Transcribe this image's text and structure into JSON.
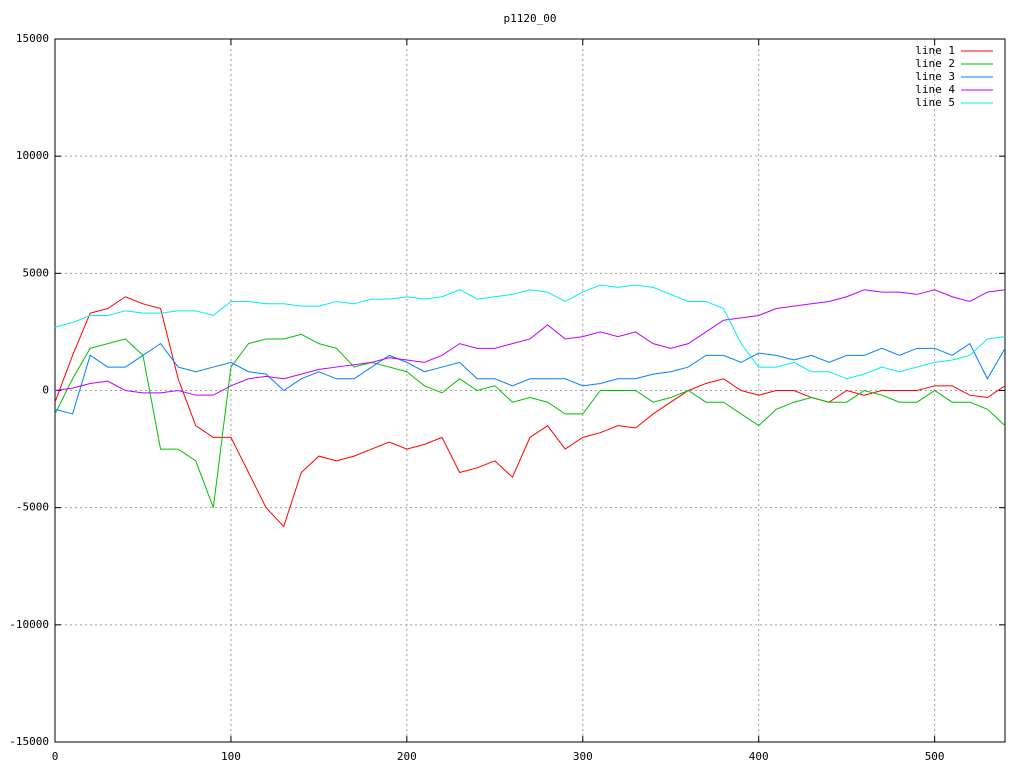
{
  "chart_data": {
    "type": "line",
    "title": "p1120_00",
    "x": [
      0,
      10,
      20,
      30,
      40,
      50,
      60,
      70,
      80,
      90,
      100,
      110,
      120,
      130,
      140,
      150,
      160,
      170,
      180,
      190,
      200,
      210,
      220,
      230,
      240,
      250,
      260,
      270,
      280,
      290,
      300,
      310,
      320,
      330,
      340,
      350,
      360,
      370,
      380,
      390,
      400,
      410,
      420,
      430,
      440,
      450,
      460,
      470,
      480,
      490,
      500,
      510,
      520,
      530,
      540
    ],
    "series": [
      {
        "name": "line 1",
        "color": "#ff0000",
        "values": [
          -500,
          1500,
          3300,
          3500,
          4000,
          3700,
          3500,
          500,
          -1500,
          -2000,
          -2000,
          -3500,
          -5000,
          -5800,
          -3500,
          -2800,
          -3000,
          -2800,
          -2500,
          -2200,
          -2500,
          -2300,
          -2000,
          -3500,
          -3300,
          -3000,
          -3700,
          -2000,
          -1500,
          -2500,
          -2000,
          -1800,
          -1500,
          -1600,
          -1000,
          -500,
          0,
          300,
          500,
          0,
          -200,
          0,
          0,
          -300,
          -500,
          0,
          -200,
          0,
          0,
          0,
          200,
          200,
          -200,
          -300,
          200
        ]
      },
      {
        "name": "line 2",
        "color": "#00c000",
        "values": [
          -1000,
          500,
          1800,
          2000,
          2200,
          1500,
          -2500,
          -2500,
          -3000,
          -5000,
          1000,
          2000,
          2200,
          2200,
          2400,
          2000,
          1800,
          1000,
          1200,
          1000,
          800,
          200,
          -100,
          500,
          0,
          200,
          -500,
          -300,
          -500,
          -1000,
          -1000,
          0,
          0,
          0,
          -500,
          -300,
          0,
          -500,
          -500,
          -1000,
          -1500,
          -800,
          -500,
          -300,
          -500,
          -500,
          0,
          -200,
          -500,
          -500,
          0,
          -500,
          -500,
          -800,
          -1500
        ]
      },
      {
        "name": "line 3",
        "color": "#0080ff",
        "values": [
          -800,
          -1000,
          1500,
          1000,
          1000,
          1500,
          2000,
          1000,
          800,
          1000,
          1200,
          800,
          700,
          0,
          500,
          800,
          500,
          500,
          1000,
          1500,
          1200,
          800,
          1000,
          1200,
          500,
          500,
          200,
          500,
          500,
          500,
          200,
          300,
          500,
          500,
          700,
          800,
          1000,
          1500,
          1500,
          1200,
          1600,
          1500,
          1300,
          1500,
          1200,
          1500,
          1500,
          1800,
          1500,
          1800,
          1800,
          1500,
          2000,
          500,
          1800
        ]
      },
      {
        "name": "line 4",
        "color": "#c000ff",
        "values": [
          0,
          100,
          300,
          400,
          0,
          -100,
          -100,
          0,
          -200,
          -200,
          200,
          500,
          600,
          500,
          700,
          900,
          1000,
          1100,
          1200,
          1400,
          1300,
          1200,
          1500,
          2000,
          1800,
          1800,
          2000,
          2200,
          2800,
          2200,
          2300,
          2500,
          2300,
          2500,
          2000,
          1800,
          2000,
          2500,
          3000,
          3100,
          3200,
          3500,
          3600,
          3700,
          3800,
          4000,
          4300,
          4200,
          4200,
          4100,
          4300,
          4000,
          3800,
          4200,
          4300
        ]
      },
      {
        "name": "line 5",
        "color": "#00eeee",
        "values": [
          2700,
          2900,
          3200,
          3200,
          3400,
          3300,
          3300,
          3400,
          3400,
          3200,
          3800,
          3800,
          3700,
          3700,
          3600,
          3600,
          3800,
          3700,
          3900,
          3900,
          4000,
          3900,
          4000,
          4300,
          3900,
          4000,
          4100,
          4300,
          4200,
          3800,
          4200,
          4500,
          4400,
          4500,
          4400,
          4100,
          3800,
          3800,
          3500,
          2000,
          1000,
          1000,
          1200,
          800,
          800,
          500,
          700,
          1000,
          800,
          1000,
          1200,
          1300,
          1500,
          2200,
          2300
        ]
      }
    ],
    "xlim": [
      0,
      540
    ],
    "xticks": [
      0,
      100,
      200,
      300,
      400,
      500
    ],
    "ylim": [
      -15000,
      15000
    ],
    "yticks": [
      -15000,
      -10000,
      -5000,
      0,
      5000,
      10000,
      15000
    ],
    "grid": true,
    "legend": "top-right"
  }
}
